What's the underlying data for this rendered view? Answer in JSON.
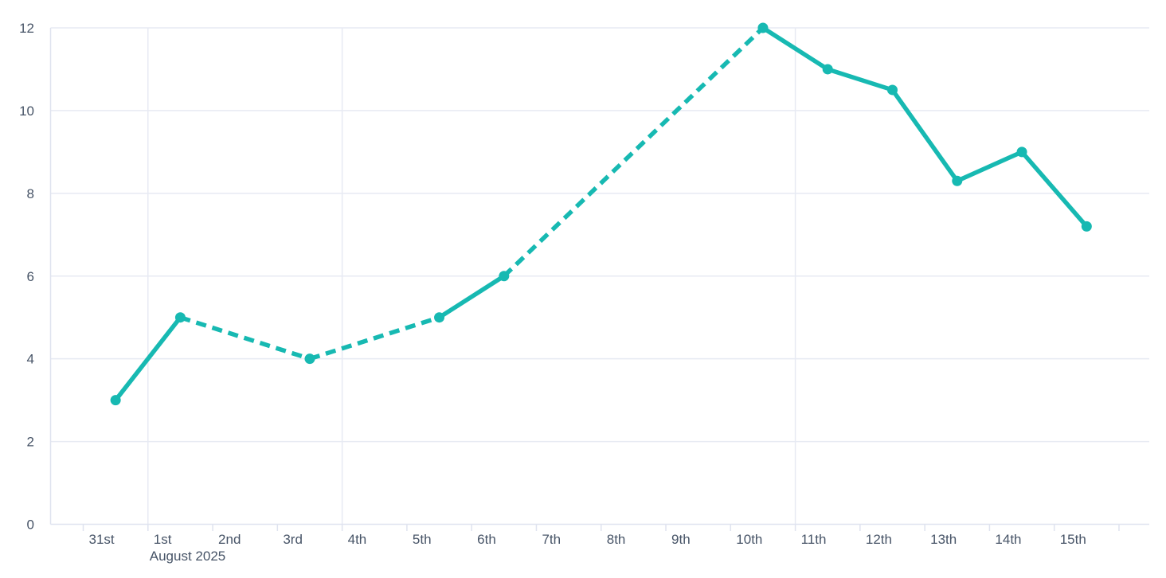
{
  "chart_data": {
    "type": "line",
    "title": "",
    "x_axis": {
      "tick_labels": [
        "31st",
        "1st",
        "2nd",
        "3rd",
        "4th",
        "5th",
        "6th",
        "7th",
        "8th",
        "9th",
        "10th",
        "11th",
        "12th",
        "13th",
        "14th",
        "15th"
      ],
      "month_label": "August 2025",
      "month_label_at": "1st"
    },
    "y_axis": {
      "min": 0,
      "max": 12,
      "tick_step": 2,
      "tick_labels": [
        "0",
        "2",
        "4",
        "6",
        "8",
        "10",
        "12"
      ]
    },
    "series": [
      {
        "name": "daily-value",
        "color": "#17b9b2",
        "points": [
          {
            "x_label": "31st",
            "x_index": 0,
            "value": 3
          },
          {
            "x_label": "1st",
            "x_index": 1,
            "value": 5
          },
          {
            "x_label": "3rd",
            "x_index": 3,
            "value": 4
          },
          {
            "x_label": "5th",
            "x_index": 5,
            "value": 5
          },
          {
            "x_label": "6th",
            "x_index": 6,
            "value": 6
          },
          {
            "x_label": "10th",
            "x_index": 10,
            "value": 12
          },
          {
            "x_label": "11th",
            "x_index": 11,
            "value": 11
          },
          {
            "x_label": "12th",
            "x_index": 12,
            "value": 10.5
          },
          {
            "x_label": "13th",
            "x_index": 13,
            "value": 8.3
          },
          {
            "x_label": "14th",
            "x_index": 14,
            "value": 9
          },
          {
            "x_label": "15th",
            "x_index": 15,
            "value": 7.2
          }
        ],
        "segment_styles": [
          {
            "from_index": 0,
            "to_index": 1,
            "style": "solid"
          },
          {
            "from_index": 1,
            "to_index": 3,
            "style": "dashed"
          },
          {
            "from_index": 3,
            "to_index": 5,
            "style": "dashed"
          },
          {
            "from_index": 5,
            "to_index": 6,
            "style": "solid"
          },
          {
            "from_index": 6,
            "to_index": 10,
            "style": "dashed"
          },
          {
            "from_index": 10,
            "to_index": 11,
            "style": "solid"
          },
          {
            "from_index": 11,
            "to_index": 12,
            "style": "solid"
          },
          {
            "from_index": 12,
            "to_index": 13,
            "style": "solid"
          },
          {
            "from_index": 13,
            "to_index": 14,
            "style": "solid"
          },
          {
            "from_index": 14,
            "to_index": 15,
            "style": "solid"
          }
        ]
      }
    ],
    "grid": {
      "horizontal": true,
      "vertical_at_labels": [
        "1st",
        "4th",
        "11th"
      ]
    },
    "legend": null,
    "colors": {
      "line": "#17b9b2",
      "grid": "#e7eaf3",
      "axis": "#dfe3ef",
      "text": "#475467",
      "background": "#ffffff"
    }
  }
}
